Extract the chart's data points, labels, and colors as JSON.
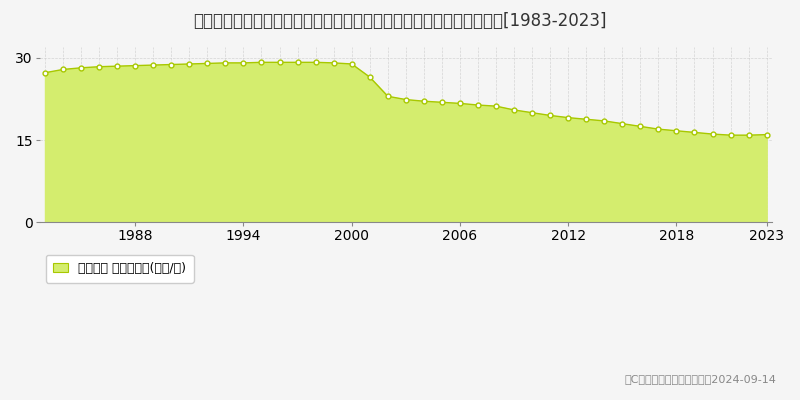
{
  "title": "新潟県上越市西城町３丁目字東二ノ辻１３番７　地価公示　地価推移[1983-2023]",
  "years": [
    1983,
    1984,
    1985,
    1986,
    1987,
    1988,
    1989,
    1990,
    1991,
    1992,
    1993,
    1994,
    1995,
    1996,
    1997,
    1998,
    1999,
    2000,
    2001,
    2002,
    2003,
    2004,
    2005,
    2006,
    2007,
    2008,
    2009,
    2010,
    2011,
    2012,
    2013,
    2014,
    2015,
    2016,
    2017,
    2018,
    2019,
    2020,
    2021,
    2022,
    2023
  ],
  "values": [
    27.3,
    27.9,
    28.2,
    28.4,
    28.5,
    28.6,
    28.7,
    28.8,
    28.9,
    29.0,
    29.1,
    29.1,
    29.2,
    29.2,
    29.2,
    29.2,
    29.1,
    28.9,
    26.5,
    23.0,
    22.4,
    22.1,
    21.9,
    21.7,
    21.4,
    21.2,
    20.5,
    20.0,
    19.5,
    19.1,
    18.8,
    18.5,
    18.0,
    17.5,
    17.0,
    16.7,
    16.4,
    16.1,
    15.9,
    15.9,
    16.0
  ],
  "fill_color": "#d4ed6e",
  "line_color": "#a8c800",
  "marker_color": "#ffffff",
  "marker_edge_color": "#a8c800",
  "background_color": "#f5f5f5",
  "plot_bg_color": "#f5f5f5",
  "grid_color": "#cccccc",
  "yticks": [
    0,
    15,
    30
  ],
  "xticks": [
    1988,
    1994,
    2000,
    2006,
    2012,
    2018,
    2023
  ],
  "ylim": [
    0,
    32
  ],
  "xlim_min": 1983,
  "xlim_max": 2023,
  "legend_label": "地価公示 平均坪単価(万円/坪)",
  "copyright_text": "（C）土地価格ドットコム　2024-09-14",
  "title_fontsize": 12,
  "tick_fontsize": 10,
  "legend_fontsize": 9,
  "copyright_fontsize": 8
}
